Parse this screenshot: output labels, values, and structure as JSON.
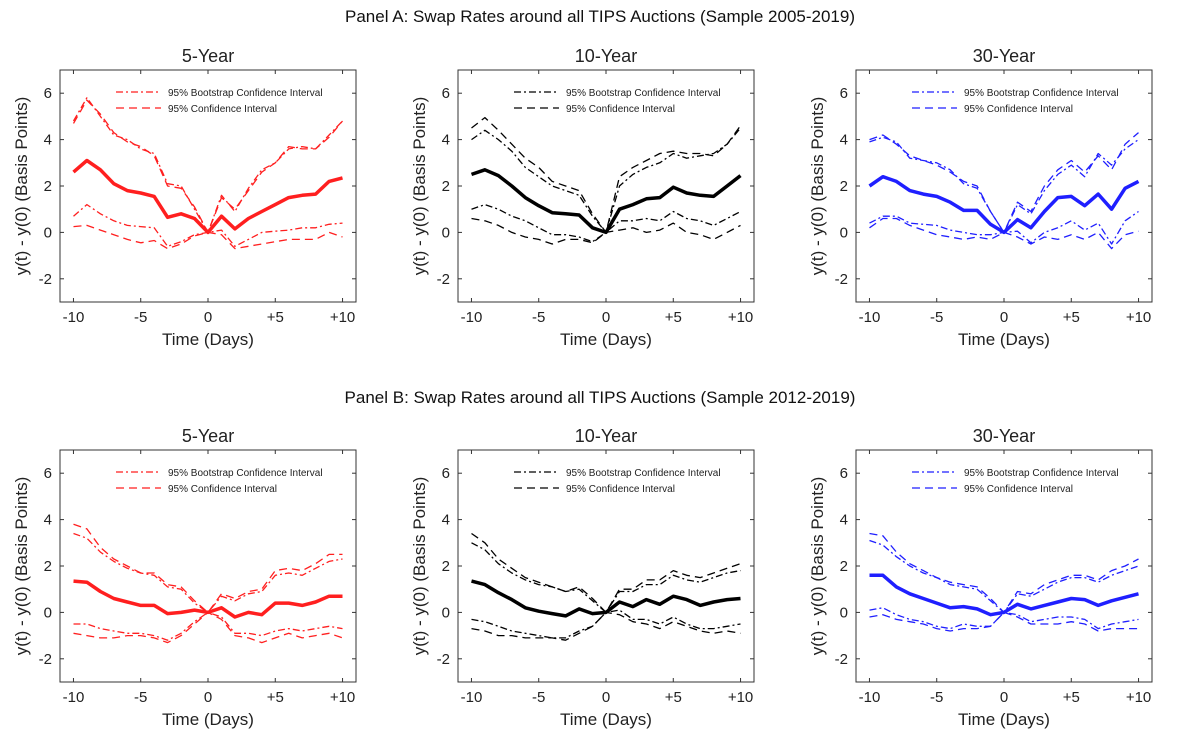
{
  "panels": [
    {
      "title": "Panel A: Swap Rates around all TIPS Auctions (Sample 2005-2019)"
    },
    {
      "title": "Panel B: Swap Rates around all TIPS Auctions (Sample 2012-2019)"
    }
  ],
  "legend": {
    "bootstrap_label": "95% Bootstrap Confidence Interval",
    "ci_label": "95% Confidence Interval"
  },
  "colors": {
    "red": "#ff1f1f",
    "black": "#000000",
    "blue": "#1f1fff"
  },
  "chart_data": [
    {
      "type": "line",
      "panel": 0,
      "title": "5-Year",
      "color": "red",
      "xlabel": "Time (Days)",
      "ylabel": "y(t) - y(0) (Basis Points)",
      "xlim": [
        -11,
        11
      ],
      "ylim": [
        -3,
        7
      ],
      "xticks": [
        -10,
        -5,
        0,
        5,
        10
      ],
      "xtick_labels": [
        "-10",
        "-5",
        "0",
        "+5",
        "+10"
      ],
      "yticks": [
        -2,
        0,
        2,
        4,
        6
      ],
      "x": [
        -10,
        -9,
        -8,
        -7,
        -6,
        -5,
        -4,
        -3,
        -2,
        -1,
        0,
        1,
        2,
        3,
        4,
        5,
        6,
        7,
        8,
        9,
        10
      ],
      "series": [
        {
          "role": "mean",
          "values": [
            2.6,
            3.1,
            2.7,
            2.1,
            1.8,
            1.7,
            1.55,
            0.65,
            0.8,
            0.6,
            0,
            0.7,
            0.15,
            0.6,
            0.9,
            1.2,
            1.5,
            1.6,
            1.65,
            2.2,
            2.35
          ]
        },
        {
          "role": "bootstrap_upper",
          "values": [
            4.8,
            5.8,
            5.0,
            4.2,
            4.0,
            3.6,
            3.4,
            2.1,
            2.0,
            1.0,
            0,
            1.6,
            0.9,
            1.9,
            2.7,
            3.0,
            3.6,
            3.7,
            3.6,
            4.2,
            4.8
          ]
        },
        {
          "role": "bootstrap_lower",
          "values": [
            0.7,
            1.2,
            0.8,
            0.5,
            0.3,
            0.25,
            0.2,
            -0.6,
            -0.4,
            -0.1,
            0,
            0.1,
            -0.6,
            -0.3,
            0.0,
            0.05,
            0.1,
            0.2,
            0.2,
            0.35,
            0.4
          ]
        },
        {
          "role": "ci_upper",
          "values": [
            4.7,
            5.7,
            5.1,
            4.3,
            3.9,
            3.7,
            3.3,
            2.0,
            1.9,
            1.1,
            0,
            1.5,
            1.0,
            1.8,
            2.6,
            3.0,
            3.7,
            3.6,
            3.6,
            4.1,
            4.8
          ]
        },
        {
          "role": "ci_lower",
          "values": [
            0.25,
            0.3,
            0.1,
            -0.1,
            -0.3,
            -0.45,
            -0.35,
            -0.7,
            -0.5,
            -0.15,
            0,
            -0.1,
            -0.7,
            -0.6,
            -0.5,
            -0.4,
            -0.3,
            -0.3,
            -0.3,
            0.0,
            -0.2
          ]
        }
      ]
    },
    {
      "type": "line",
      "panel": 0,
      "title": "10-Year",
      "color": "black",
      "xlabel": "Time (Days)",
      "ylabel": "",
      "xlim": [
        -11,
        11
      ],
      "ylim": [
        -3,
        7
      ],
      "xticks": [
        -10,
        -5,
        0,
        5,
        10
      ],
      "xtick_labels": [
        "-10",
        "-5",
        "0",
        "+5",
        "+10"
      ],
      "yticks": [
        -2,
        0,
        2,
        4,
        6
      ],
      "x": [
        -10,
        -9,
        -8,
        -7,
        -6,
        -5,
        -4,
        -3,
        -2,
        -1,
        0,
        1,
        2,
        3,
        4,
        5,
        6,
        7,
        8,
        9,
        10
      ],
      "series": [
        {
          "role": "mean",
          "values": [
            2.5,
            2.7,
            2.45,
            2.0,
            1.5,
            1.15,
            0.85,
            0.8,
            0.75,
            0.2,
            0,
            1.0,
            1.2,
            1.45,
            1.5,
            1.95,
            1.7,
            1.6,
            1.55,
            2.0,
            2.45
          ]
        },
        {
          "role": "bootstrap_upper",
          "values": [
            4.0,
            4.4,
            4.0,
            3.5,
            2.8,
            2.4,
            2.0,
            1.8,
            1.6,
            0.7,
            0,
            2.0,
            2.5,
            2.8,
            3.0,
            3.4,
            3.2,
            3.3,
            3.4,
            3.8,
            4.5
          ]
        },
        {
          "role": "bootstrap_lower",
          "values": [
            1.0,
            1.2,
            1.0,
            0.7,
            0.5,
            0.2,
            -0.1,
            -0.1,
            -0.2,
            -0.4,
            0,
            0.5,
            0.5,
            0.6,
            0.5,
            0.9,
            0.6,
            0.5,
            0.3,
            0.6,
            0.9
          ]
        },
        {
          "role": "ci_upper",
          "values": [
            4.5,
            4.95,
            4.4,
            3.8,
            3.2,
            2.8,
            2.2,
            2.0,
            1.8,
            0.8,
            0,
            2.4,
            2.8,
            3.1,
            3.4,
            3.5,
            3.4,
            3.4,
            3.3,
            3.8,
            4.6
          ]
        },
        {
          "role": "ci_lower",
          "values": [
            0.6,
            0.5,
            0.3,
            0.0,
            -0.2,
            -0.3,
            -0.5,
            -0.3,
            -0.3,
            -0.45,
            0,
            0.1,
            0.2,
            0.0,
            0.1,
            0.4,
            0.0,
            -0.1,
            -0.3,
            0.0,
            0.3
          ]
        }
      ]
    },
    {
      "type": "line",
      "panel": 0,
      "title": "30-Year",
      "color": "blue",
      "xlabel": "Time (Days)",
      "ylabel": "y(t) - y(0) (Basis Points)",
      "xlim": [
        -11,
        11
      ],
      "ylim": [
        -3,
        7
      ],
      "xticks": [
        -10,
        -5,
        0,
        5,
        10
      ],
      "xtick_labels": [
        "-10",
        "-5",
        "0",
        "+5",
        "+10"
      ],
      "yticks": [
        -2,
        0,
        2,
        4,
        6
      ],
      "x": [
        -10,
        -9,
        -8,
        -7,
        -6,
        -5,
        -4,
        -3,
        -2,
        -1,
        0,
        1,
        2,
        3,
        4,
        5,
        6,
        7,
        8,
        9,
        10
      ],
      "series": [
        {
          "role": "mean",
          "values": [
            2.0,
            2.4,
            2.2,
            1.8,
            1.65,
            1.55,
            1.3,
            0.95,
            0.95,
            0.35,
            0,
            0.55,
            0.2,
            0.9,
            1.5,
            1.55,
            1.15,
            1.65,
            1.0,
            1.9,
            2.2
          ]
        },
        {
          "role": "bootstrap_upper",
          "values": [
            3.9,
            4.1,
            3.9,
            3.2,
            3.1,
            3.0,
            2.7,
            2.1,
            1.9,
            0.9,
            0,
            1.2,
            0.8,
            1.8,
            2.5,
            2.9,
            2.4,
            3.4,
            2.9,
            3.6,
            4.0
          ]
        },
        {
          "role": "bootstrap_lower",
          "values": [
            0.4,
            0.7,
            0.7,
            0.4,
            0.35,
            0.3,
            0.1,
            0.0,
            -0.1,
            -0.1,
            0,
            0.05,
            -0.45,
            0.0,
            0.2,
            0.5,
            0.1,
            0.4,
            -0.5,
            0.5,
            0.9
          ]
        },
        {
          "role": "ci_upper",
          "values": [
            4.0,
            4.2,
            3.8,
            3.3,
            3.1,
            2.9,
            2.6,
            2.2,
            2.0,
            0.9,
            0,
            1.3,
            0.9,
            2.0,
            2.7,
            3.1,
            2.6,
            3.3,
            2.7,
            3.8,
            4.3
          ]
        },
        {
          "role": "ci_lower",
          "values": [
            0.2,
            0.6,
            0.6,
            0.3,
            0.1,
            -0.1,
            -0.2,
            -0.3,
            -0.2,
            -0.3,
            0,
            -0.2,
            -0.5,
            -0.2,
            -0.3,
            -0.1,
            -0.3,
            0.0,
            -0.7,
            -0.1,
            0.05
          ]
        }
      ]
    },
    {
      "type": "line",
      "panel": 1,
      "title": "5-Year",
      "color": "red",
      "xlabel": "Time (Days)",
      "ylabel": "y(t) - y(0) (Basis Points)",
      "xlim": [
        -11,
        11
      ],
      "ylim": [
        -3,
        7
      ],
      "xticks": [
        -10,
        -5,
        0,
        5,
        10
      ],
      "xtick_labels": [
        "-10",
        "-5",
        "0",
        "+5",
        "+10"
      ],
      "yticks": [
        -2,
        0,
        2,
        4,
        6
      ],
      "x": [
        -10,
        -9,
        -8,
        -7,
        -6,
        -5,
        -4,
        -3,
        -2,
        -1,
        0,
        1,
        2,
        3,
        4,
        5,
        6,
        7,
        8,
        9,
        10
      ],
      "series": [
        {
          "role": "mean",
          "values": [
            1.35,
            1.3,
            0.9,
            0.6,
            0.45,
            0.3,
            0.3,
            -0.05,
            0.0,
            0.1,
            0,
            0.2,
            -0.2,
            0.0,
            -0.1,
            0.4,
            0.4,
            0.3,
            0.45,
            0.7,
            0.7
          ]
        },
        {
          "role": "bootstrap_upper",
          "values": [
            3.4,
            3.2,
            2.6,
            2.2,
            1.9,
            1.7,
            1.6,
            1.1,
            1.0,
            0.4,
            0,
            0.7,
            0.5,
            0.8,
            0.9,
            1.6,
            1.7,
            1.6,
            1.9,
            2.2,
            2.3
          ]
        },
        {
          "role": "bootstrap_lower",
          "values": [
            -0.5,
            -0.5,
            -0.7,
            -0.8,
            -0.9,
            -0.9,
            -1.0,
            -1.2,
            -0.9,
            -0.4,
            0,
            -0.2,
            -0.9,
            -0.9,
            -1.0,
            -0.8,
            -0.7,
            -0.8,
            -0.7,
            -0.6,
            -0.7
          ]
        },
        {
          "role": "ci_upper",
          "values": [
            3.8,
            3.6,
            2.8,
            2.3,
            2.0,
            1.7,
            1.7,
            1.2,
            1.1,
            0.5,
            0,
            0.8,
            0.6,
            0.9,
            1.0,
            1.8,
            1.9,
            1.8,
            2.1,
            2.5,
            2.5
          ]
        },
        {
          "role": "ci_lower",
          "values": [
            -0.9,
            -1.0,
            -1.1,
            -1.1,
            -1.0,
            -1.0,
            -1.1,
            -1.3,
            -1.0,
            -0.5,
            0,
            -0.3,
            -1.0,
            -1.1,
            -1.3,
            -1.1,
            -0.9,
            -1.1,
            -1.0,
            -0.9,
            -1.1
          ]
        }
      ]
    },
    {
      "type": "line",
      "panel": 1,
      "title": "10-Year",
      "color": "black",
      "xlabel": "Time (Days)",
      "ylabel": "",
      "xlim": [
        -11,
        11
      ],
      "ylim": [
        -3,
        7
      ],
      "xticks": [
        -10,
        -5,
        0,
        5,
        10
      ],
      "xtick_labels": [
        "-10",
        "-5",
        "0",
        "+5",
        "+10"
      ],
      "yticks": [
        -2,
        0,
        2,
        4,
        6
      ],
      "x": [
        -10,
        -9,
        -8,
        -7,
        -6,
        -5,
        -4,
        -3,
        -2,
        -1,
        0,
        1,
        2,
        3,
        4,
        5,
        6,
        7,
        8,
        9,
        10
      ],
      "series": [
        {
          "role": "mean",
          "values": [
            1.35,
            1.2,
            0.85,
            0.55,
            0.2,
            0.05,
            -0.05,
            -0.15,
            0.15,
            -0.05,
            0,
            0.45,
            0.25,
            0.55,
            0.35,
            0.7,
            0.55,
            0.3,
            0.45,
            0.55,
            0.6
          ]
        },
        {
          "role": "bootstrap_upper",
          "values": [
            3.0,
            2.7,
            2.1,
            1.7,
            1.4,
            1.2,
            1.1,
            0.9,
            1.0,
            0.5,
            0,
            0.9,
            0.9,
            1.2,
            1.2,
            1.6,
            1.4,
            1.3,
            1.5,
            1.7,
            1.8
          ]
        },
        {
          "role": "bootstrap_lower",
          "values": [
            -0.3,
            -0.4,
            -0.6,
            -0.8,
            -0.9,
            -1.0,
            -1.1,
            -1.1,
            -0.8,
            -0.6,
            0,
            0.1,
            -0.3,
            -0.3,
            -0.5,
            -0.2,
            -0.5,
            -0.7,
            -0.7,
            -0.6,
            -0.5
          ]
        },
        {
          "role": "ci_upper",
          "values": [
            3.4,
            3.0,
            2.3,
            1.9,
            1.5,
            1.3,
            1.1,
            0.9,
            1.1,
            0.6,
            0,
            1.0,
            1.0,
            1.4,
            1.4,
            1.8,
            1.6,
            1.5,
            1.7,
            1.9,
            2.1
          ]
        },
        {
          "role": "ci_lower",
          "values": [
            -0.7,
            -0.8,
            -1.0,
            -1.0,
            -1.1,
            -1.1,
            -1.1,
            -1.2,
            -0.9,
            -0.6,
            0,
            -0.1,
            -0.4,
            -0.5,
            -0.7,
            -0.4,
            -0.6,
            -0.8,
            -0.9,
            -0.8,
            -0.9
          ]
        }
      ]
    },
    {
      "type": "line",
      "panel": 1,
      "title": "30-Year",
      "color": "blue",
      "xlabel": "Time (Days)",
      "ylabel": "y(t) - y(0) (Basis Points)",
      "xlim": [
        -11,
        11
      ],
      "ylim": [
        -3,
        7
      ],
      "xticks": [
        -10,
        -5,
        0,
        5,
        10
      ],
      "xtick_labels": [
        "-10",
        "-5",
        "0",
        "+5",
        "+10"
      ],
      "yticks": [
        -2,
        0,
        2,
        4,
        6
      ],
      "x": [
        -10,
        -9,
        -8,
        -7,
        -6,
        -5,
        -4,
        -3,
        -2,
        -1,
        0,
        1,
        2,
        3,
        4,
        5,
        6,
        7,
        8,
        9,
        10
      ],
      "series": [
        {
          "role": "mean",
          "values": [
            1.6,
            1.6,
            1.1,
            0.8,
            0.6,
            0.4,
            0.2,
            0.25,
            0.15,
            -0.1,
            0,
            0.35,
            0.15,
            0.3,
            0.45,
            0.6,
            0.55,
            0.3,
            0.5,
            0.65,
            0.8
          ]
        },
        {
          "role": "bootstrap_upper",
          "values": [
            3.1,
            2.9,
            2.4,
            2.0,
            1.7,
            1.5,
            1.2,
            1.1,
            1.0,
            0.5,
            0,
            0.8,
            0.7,
            1.0,
            1.3,
            1.5,
            1.5,
            1.3,
            1.6,
            1.8,
            2.0
          ]
        },
        {
          "role": "bootstrap_lower",
          "values": [
            0.1,
            0.2,
            -0.1,
            -0.3,
            -0.4,
            -0.6,
            -0.7,
            -0.5,
            -0.6,
            -0.6,
            0,
            -0.1,
            -0.4,
            -0.3,
            -0.2,
            -0.2,
            -0.3,
            -0.7,
            -0.5,
            -0.4,
            -0.3
          ]
        },
        {
          "role": "ci_upper",
          "values": [
            3.4,
            3.3,
            2.6,
            2.1,
            1.8,
            1.5,
            1.3,
            1.2,
            1.1,
            0.6,
            0,
            0.9,
            0.8,
            1.2,
            1.4,
            1.6,
            1.6,
            1.4,
            1.8,
            2.0,
            2.3
          ]
        },
        {
          "role": "ci_lower",
          "values": [
            -0.2,
            -0.1,
            -0.3,
            -0.4,
            -0.5,
            -0.7,
            -0.8,
            -0.7,
            -0.7,
            -0.6,
            0,
            -0.2,
            -0.5,
            -0.5,
            -0.5,
            -0.4,
            -0.5,
            -0.8,
            -0.7,
            -0.7,
            -0.7
          ]
        }
      ]
    }
  ]
}
